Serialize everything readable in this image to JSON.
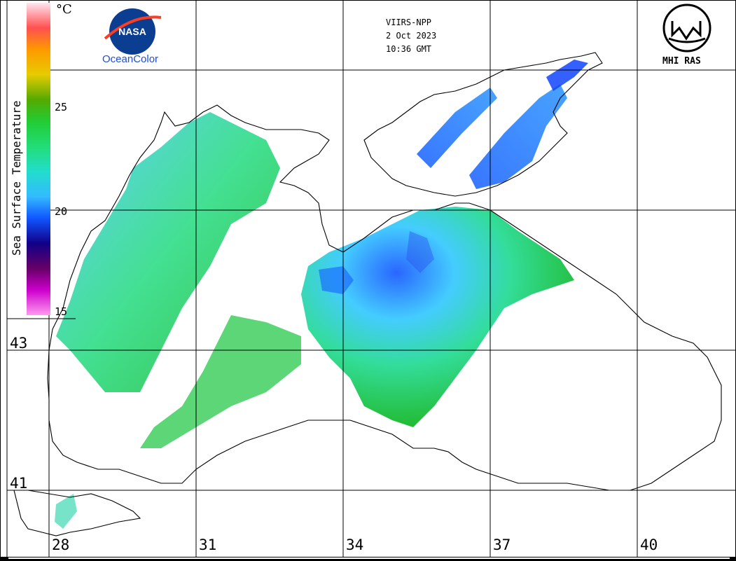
{
  "header": {
    "sensor": "VIIRS-NPP",
    "date": "2 Oct 2023",
    "time": "10:36 GMT"
  },
  "logos": {
    "nasa": "NASA",
    "oceancolor": "OceanColor",
    "mhi": "MHI RAS"
  },
  "legend": {
    "title": "Sea Surface Temperature",
    "unit": "°C",
    "ticks": [
      "25",
      "20",
      "15"
    ],
    "colors": [
      "#ffe6f0",
      "#ff5050",
      "#ff9900",
      "#e6cc00",
      "#55aa00",
      "#22cc33",
      "#22dd77",
      "#22ddcc",
      "#33bbff",
      "#1155ff",
      "#110088",
      "#660066",
      "#cc00cc",
      "#ff99ee"
    ]
  },
  "grid": {
    "longitudes": [
      "28",
      "31",
      "34",
      "37",
      "40"
    ],
    "latitudes": [
      "43",
      "41"
    ]
  },
  "colors": {
    "coast": "#000000",
    "grid": "#000000",
    "water_warm": "#22cc44",
    "water_cool": "#33bbff",
    "water_cold": "#1155ff"
  }
}
